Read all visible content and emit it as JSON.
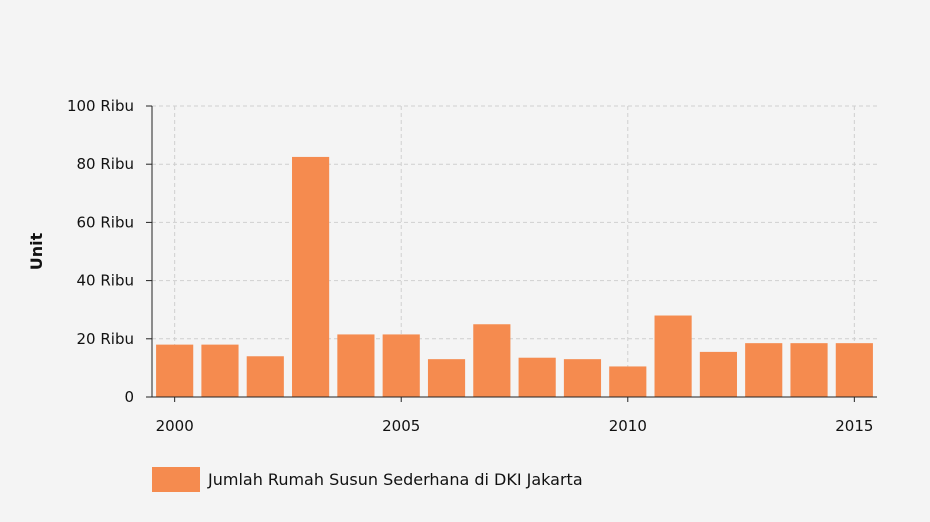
{
  "chart_data": {
    "type": "bar",
    "title": "",
    "ylabel": "Unit",
    "xlabel": "",
    "ylim": [
      0,
      100000
    ],
    "y_ticks": [
      {
        "value": 0,
        "label": "0"
      },
      {
        "value": 20000,
        "label": "20 Ribu"
      },
      {
        "value": 40000,
        "label": "40 Ribu"
      },
      {
        "value": 60000,
        "label": "60 Ribu"
      },
      {
        "value": 80000,
        "label": "80 Ribu"
      },
      {
        "value": 100000,
        "label": "100 Ribu"
      }
    ],
    "x_ticks": [
      2000,
      2005,
      2010,
      2015
    ],
    "categories": [
      2000,
      2001,
      2002,
      2003,
      2004,
      2005,
      2006,
      2007,
      2008,
      2009,
      2010,
      2011,
      2012,
      2013,
      2014,
      2015
    ],
    "series": [
      {
        "name": "Jumlah Rumah Susun Sederhana di DKI Jakarta",
        "color": "#f58b4f",
        "values": [
          18000,
          18000,
          14000,
          82500,
          21500,
          21500,
          13000,
          25000,
          13500,
          13000,
          10500,
          28000,
          15500,
          18500,
          18500,
          18500
        ]
      }
    ],
    "grid": true,
    "legend_position": "bottom-left"
  }
}
